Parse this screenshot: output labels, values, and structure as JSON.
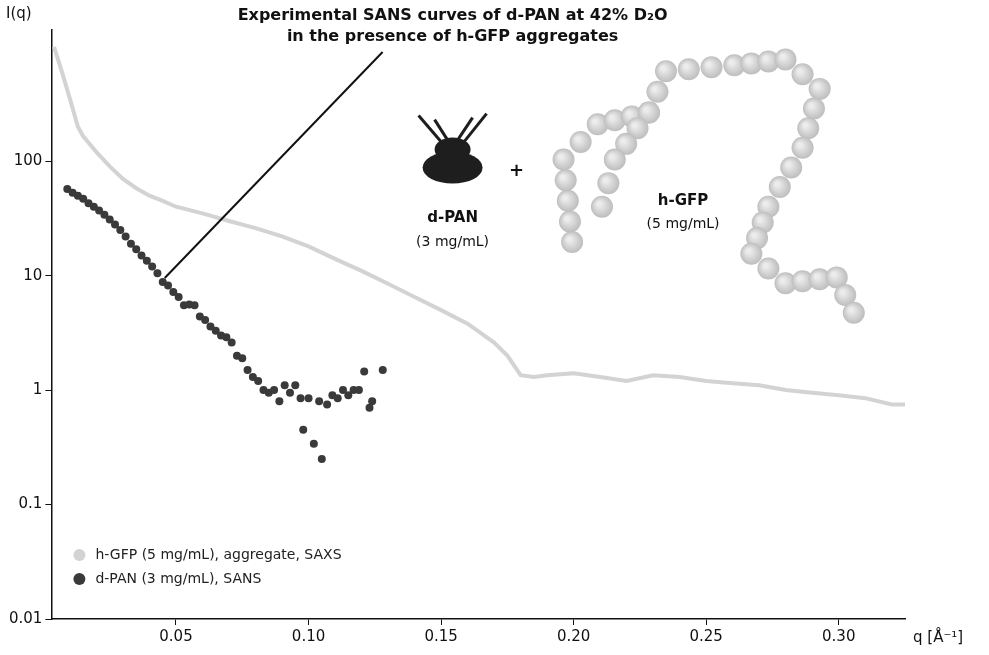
{
  "chart_data": {
    "type": "scatter",
    "annotation": {
      "text": [
        "Experimental SANS curves of d-PAN at 42% D₂O",
        "in the presence of h-GFP aggregates"
      ],
      "x": 0.045,
      "y": 8.8
    },
    "inset": {
      "left": {
        "name": "d-PAN",
        "note": "(3 mg/mL)"
      },
      "join": "+",
      "right": {
        "name": "h-GFP",
        "note": "(5 mg/mL)"
      }
    },
    "x_label": "q [Å⁻¹]",
    "y_label": "I(q)",
    "log": "y",
    "grid": false,
    "legend": "lower left",
    "xlim": [
      0.003,
      0.325
    ],
    "ylim": [
      0.01,
      1400
    ],
    "xticks": [
      0.05,
      {
        "value": 0.1,
        "label": "0.10"
      },
      0.15,
      {
        "value": 0.2,
        "label": "0.20"
      },
      0.25,
      {
        "value": 0.3,
        "label": "0.30"
      }
    ],
    "yticks": [
      0.01,
      0.1,
      1,
      10,
      100
    ],
    "series": [
      {
        "name": "h-GFP (5 mg/mL), aggregate, SAXS",
        "color": "#d3d3d3",
        "type": "line",
        "line_style": "solid",
        "x": [
          0.004,
          0.007,
          0.01,
          0.013,
          0.015,
          0.02,
          0.025,
          0.03,
          0.035,
          0.04,
          0.045,
          0.05,
          0.06,
          0.07,
          0.08,
          0.09,
          0.1,
          0.11,
          0.12,
          0.13,
          0.14,
          0.15,
          0.16,
          0.17,
          0.175,
          0.18,
          0.185,
          0.19,
          0.2,
          0.21,
          0.22,
          0.23,
          0.24,
          0.25,
          0.26,
          0.27,
          0.28,
          0.29,
          0.3,
          0.31,
          0.32,
          0.325
        ],
        "values": [
          1000,
          600,
          350,
          200,
          165,
          120,
          90,
          70,
          58,
          50,
          45,
          40,
          35,
          30,
          26,
          22,
          18,
          14,
          11,
          8.5,
          6.5,
          5.0,
          3.8,
          2.6,
          2.0,
          1.35,
          1.3,
          1.35,
          1.4,
          1.3,
          1.2,
          1.35,
          1.3,
          1.2,
          1.15,
          1.1,
          1.0,
          0.95,
          0.9,
          0.85,
          0.75,
          0.75
        ]
      },
      {
        "name": "d-PAN (3 mg/mL), SANS",
        "color": "#3a3a3a",
        "type": "scatter",
        "marker": "circle",
        "x": [
          0.009,
          0.011,
          0.013,
          0.015,
          0.017,
          0.019,
          0.021,
          0.023,
          0.025,
          0.027,
          0.029,
          0.031,
          0.033,
          0.035,
          0.037,
          0.039,
          0.041,
          0.043,
          0.045,
          0.047,
          0.049,
          0.051,
          0.053,
          0.055,
          0.057,
          0.059,
          0.061,
          0.063,
          0.065,
          0.067,
          0.069,
          0.071,
          0.073,
          0.075,
          0.077,
          0.079,
          0.081,
          0.083,
          0.085,
          0.087,
          0.089,
          0.091,
          0.093,
          0.095,
          0.097,
          0.098,
          0.1,
          0.102,
          0.104,
          0.105,
          0.107,
          0.109,
          0.111,
          0.113,
          0.115,
          0.117,
          0.119,
          0.121,
          0.123,
          0.124,
          0.128
        ],
        "values": [
          57,
          53,
          50,
          47,
          43,
          40,
          37,
          34,
          31,
          28,
          25,
          22,
          19,
          17,
          15,
          13.5,
          12,
          10.5,
          8.8,
          8.2,
          7.2,
          6.5,
          5.5,
          5.6,
          5.5,
          4.4,
          4.1,
          3.6,
          3.3,
          3.0,
          2.9,
          2.6,
          2.0,
          1.9,
          1.5,
          1.3,
          1.2,
          1.0,
          0.95,
          1.0,
          0.8,
          1.1,
          0.95,
          1.1,
          0.85,
          0.45,
          0.85,
          0.34,
          0.8,
          0.25,
          0.75,
          0.9,
          0.85,
          1.0,
          0.9,
          1.0,
          1.0,
          1.45,
          0.7,
          0.8,
          1.5
        ]
      }
    ]
  }
}
